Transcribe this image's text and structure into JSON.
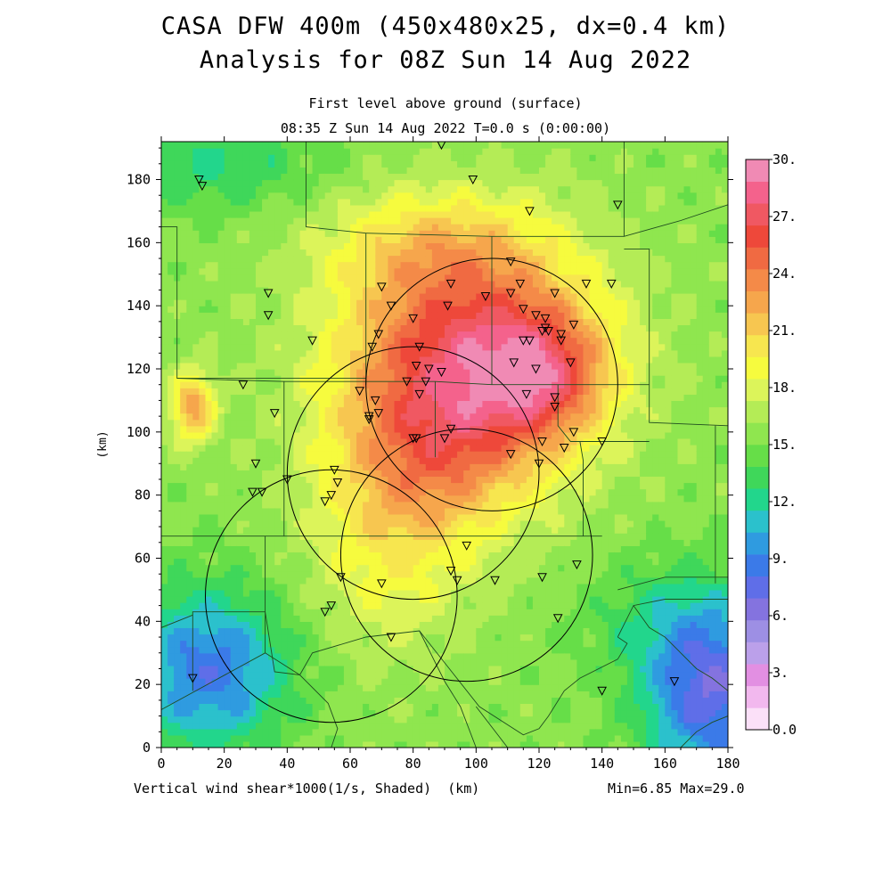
{
  "header": {
    "title_line1": "CASA DFW 400m (450x480x25, dx=0.4 km)",
    "title_line2": "Analysis for 08Z Sun 14 Aug 2022",
    "subtitle1": "First level above ground (surface)",
    "subtitle2": "08:35 Z Sun 14 Aug 2022    T=0.0 s (0:00:00)"
  },
  "footer": {
    "variable": "Vertical wind shear*1000(1/s, Shaded)  (km)",
    "minmax": "Min=6.85 Max=29.0"
  },
  "chart_data": {
    "type": "heatmap",
    "xlabel": "(km)",
    "ylabel": "(km)",
    "xlim": [
      0,
      180
    ],
    "ylim": [
      0,
      192
    ],
    "x_ticks": [
      0,
      20,
      40,
      60,
      80,
      100,
      120,
      140,
      160,
      180
    ],
    "y_ticks": [
      0,
      20,
      40,
      60,
      80,
      100,
      120,
      140,
      160,
      180
    ],
    "colorbar": {
      "min": 0,
      "max": 30,
      "step": 1.5,
      "labels": [
        "0.0",
        "3.",
        "6.",
        "9.",
        "12.",
        "15.",
        "18.",
        "21.",
        "24.",
        "27.",
        "30."
      ],
      "colors": [
        "#fbe0f8",
        "#f2b8ee",
        "#e28fe2",
        "#bba0ea",
        "#9d8fe4",
        "#8473df",
        "#5f6ee8",
        "#3b7ae8",
        "#2f9be0",
        "#2bc1cc",
        "#22d68c",
        "#3fd75a",
        "#66de48",
        "#8fe64f",
        "#b4ec56",
        "#dcf45a",
        "#f6fb3e",
        "#f7e64f",
        "#f7c650",
        "#f6a64c",
        "#f48a48",
        "#f06a42",
        "#ee483a",
        "#f05862",
        "#f4628c",
        "#f08ab4"
      ]
    },
    "field": {
      "base": 15.5,
      "blobs": [
        {
          "x": 98,
          "y": 125,
          "amp": 11,
          "sx": 28,
          "sy": 26
        },
        {
          "x": 122,
          "y": 118,
          "amp": 6,
          "sx": 14,
          "sy": 14
        },
        {
          "x": 85,
          "y": 92,
          "amp": 5,
          "sx": 22,
          "sy": 20
        },
        {
          "x": 72,
          "y": 60,
          "amp": 3,
          "sx": 18,
          "sy": 22
        },
        {
          "x": 10,
          "y": 108,
          "amp": 7,
          "sx": 5,
          "sy": 8
        },
        {
          "x": 15,
          "y": 25,
          "amp": -7,
          "sx": 18,
          "sy": 18
        },
        {
          "x": 175,
          "y": 15,
          "amp": -8,
          "sx": 15,
          "sy": 18
        },
        {
          "x": 165,
          "y": 40,
          "amp": -3,
          "sx": 20,
          "sy": 14
        },
        {
          "x": 15,
          "y": 185,
          "amp": -3,
          "sx": 25,
          "sy": 10
        },
        {
          "x": 85,
          "y": 160,
          "amp": 3,
          "sx": 25,
          "sy": 12
        }
      ],
      "min": 6.85,
      "max": 29.0
    },
    "range_rings": [
      {
        "x": 105,
        "y": 115,
        "r": 40
      },
      {
        "x": 80,
        "y": 87,
        "r": 40
      },
      {
        "x": 97,
        "y": 61,
        "r": 40
      },
      {
        "x": 54,
        "y": 48,
        "r": 40
      }
    ],
    "stations": [
      [
        89,
        191
      ],
      [
        12,
        180
      ],
      [
        13,
        178
      ],
      [
        99,
        180
      ],
      [
        145,
        172
      ],
      [
        117,
        170
      ],
      [
        111,
        154
      ],
      [
        34,
        144
      ],
      [
        70,
        146
      ],
      [
        92,
        147
      ],
      [
        114,
        147
      ],
      [
        125,
        144
      ],
      [
        135,
        147
      ],
      [
        143,
        147
      ],
      [
        34,
        137
      ],
      [
        73,
        140
      ],
      [
        103,
        143
      ],
      [
        111,
        144
      ],
      [
        115,
        139
      ],
      [
        119,
        137
      ],
      [
        122,
        136
      ],
      [
        127,
        131
      ],
      [
        131,
        134
      ],
      [
        48,
        129
      ],
      [
        69,
        131
      ],
      [
        67,
        127
      ],
      [
        80,
        136
      ],
      [
        91,
        140
      ],
      [
        82,
        127
      ],
      [
        117,
        129
      ],
      [
        115,
        129
      ],
      [
        123,
        132
      ],
      [
        121,
        132
      ],
      [
        122,
        133
      ],
      [
        127,
        129
      ],
      [
        130,
        122
      ],
      [
        81,
        121
      ],
      [
        85,
        120
      ],
      [
        89,
        119
      ],
      [
        78,
        116
      ],
      [
        84,
        116
      ],
      [
        112,
        122
      ],
      [
        119,
        120
      ],
      [
        26,
        115
      ],
      [
        63,
        113
      ],
      [
        68,
        110
      ],
      [
        82,
        112
      ],
      [
        116,
        112
      ],
      [
        125,
        111
      ],
      [
        125,
        108
      ],
      [
        36,
        106
      ],
      [
        69,
        106
      ],
      [
        66,
        104
      ],
      [
        66,
        105
      ],
      [
        92,
        101
      ],
      [
        81,
        98
      ],
      [
        80,
        98
      ],
      [
        90,
        98
      ],
      [
        121,
        97
      ],
      [
        131,
        100
      ],
      [
        140,
        97
      ],
      [
        111,
        93
      ],
      [
        128,
        95
      ],
      [
        30,
        90
      ],
      [
        120,
        90
      ],
      [
        55,
        88
      ],
      [
        56,
        84
      ],
      [
        40,
        85
      ],
      [
        29,
        81
      ],
      [
        32,
        81
      ],
      [
        54,
        80
      ],
      [
        52,
        78
      ],
      [
        97,
        64
      ],
      [
        132,
        58
      ],
      [
        92,
        56
      ],
      [
        94,
        53
      ],
      [
        121,
        54
      ],
      [
        106,
        53
      ],
      [
        57,
        54
      ],
      [
        70,
        52
      ],
      [
        54,
        45
      ],
      [
        52,
        43
      ],
      [
        126,
        41
      ],
      [
        73,
        35
      ],
      [
        10,
        22
      ],
      [
        140,
        18
      ],
      [
        163,
        21
      ]
    ],
    "boundaries": [
      [
        [
          46,
          192
        ],
        [
          46,
          165
        ],
        [
          65,
          163
        ]
      ],
      [
        [
          0,
          165
        ],
        [
          5,
          165
        ],
        [
          5,
          117
        ],
        [
          65,
          117
        ]
      ],
      [
        [
          65,
          163
        ],
        [
          105,
          162
        ],
        [
          122,
          162
        ],
        [
          147,
          162
        ],
        [
          165,
          167
        ],
        [
          180,
          172
        ]
      ],
      [
        [
          105,
          162
        ],
        [
          105,
          115
        ]
      ],
      [
        [
          147,
          162
        ],
        [
          147,
          192
        ]
      ],
      [
        [
          147,
          158
        ],
        [
          155,
          158
        ],
        [
          155,
          103
        ],
        [
          180,
          102
        ]
      ],
      [
        [
          65,
          163
        ],
        [
          65,
          117
        ],
        [
          65,
          115
        ]
      ],
      [
        [
          5,
          117
        ],
        [
          39,
          116
        ],
        [
          39,
          67
        ],
        [
          0,
          67
        ]
      ],
      [
        [
          39,
          116
        ],
        [
          68,
          116
        ],
        [
          87,
          116
        ],
        [
          105,
          115
        ],
        [
          126,
          115
        ],
        [
          155,
          115
        ]
      ],
      [
        [
          87,
          116
        ],
        [
          87,
          92
        ]
      ],
      [
        [
          126,
          115
        ],
        [
          126,
          102
        ],
        [
          130,
          97
        ],
        [
          155,
          97
        ]
      ],
      [
        [
          39,
          67
        ],
        [
          70,
          67
        ],
        [
          109,
          67
        ],
        [
          134,
          67
        ],
        [
          140,
          67
        ]
      ],
      [
        [
          134,
          67
        ],
        [
          134,
          91
        ],
        [
          133,
          97
        ]
      ],
      [
        [
          0,
          67
        ],
        [
          0,
          70
        ]
      ],
      [
        [
          33,
          67
        ],
        [
          33,
          43
        ],
        [
          10,
          43
        ],
        [
          10,
          18
        ]
      ],
      [
        [
          0,
          38
        ],
        [
          10,
          42
        ]
      ],
      [
        [
          33,
          30
        ],
        [
          33,
          43
        ],
        [
          36,
          24
        ],
        [
          44,
          23
        ],
        [
          48,
          30
        ],
        [
          65,
          35
        ],
        [
          82,
          37
        ],
        [
          90,
          21
        ],
        [
          95,
          13
        ],
        [
          100,
          0
        ]
      ],
      [
        [
          33,
          30
        ],
        [
          0,
          12
        ]
      ],
      [
        [
          33,
          30
        ],
        [
          44,
          23
        ],
        [
          53,
          14
        ],
        [
          56,
          6
        ],
        [
          54,
          0
        ]
      ],
      [
        [
          82,
          37
        ],
        [
          101,
          13
        ],
        [
          115,
          4
        ],
        [
          120,
          6
        ],
        [
          123,
          10
        ],
        [
          128,
          18
        ],
        [
          133,
          22
        ],
        [
          145,
          28
        ],
        [
          148,
          33
        ],
        [
          145,
          35
        ]
      ],
      [
        [
          145,
          35
        ],
        [
          150,
          45
        ],
        [
          160,
          47
        ],
        [
          180,
          47
        ]
      ],
      [
        [
          145,
          50
        ],
        [
          160,
          54
        ],
        [
          170,
          54
        ],
        [
          180,
          54
        ]
      ],
      [
        [
          176,
          52
        ],
        [
          176,
          102
        ]
      ],
      [
        [
          150,
          45
        ],
        [
          155,
          38
        ],
        [
          160,
          35
        ],
        [
          165,
          30
        ],
        [
          170,
          25
        ],
        [
          175,
          22
        ],
        [
          180,
          18
        ]
      ],
      [
        [
          110,
          0
        ],
        [
          100,
          13
        ]
      ],
      [
        [
          165,
          0
        ],
        [
          170,
          5
        ],
        [
          175,
          8
        ],
        [
          180,
          10
        ]
      ]
    ]
  }
}
